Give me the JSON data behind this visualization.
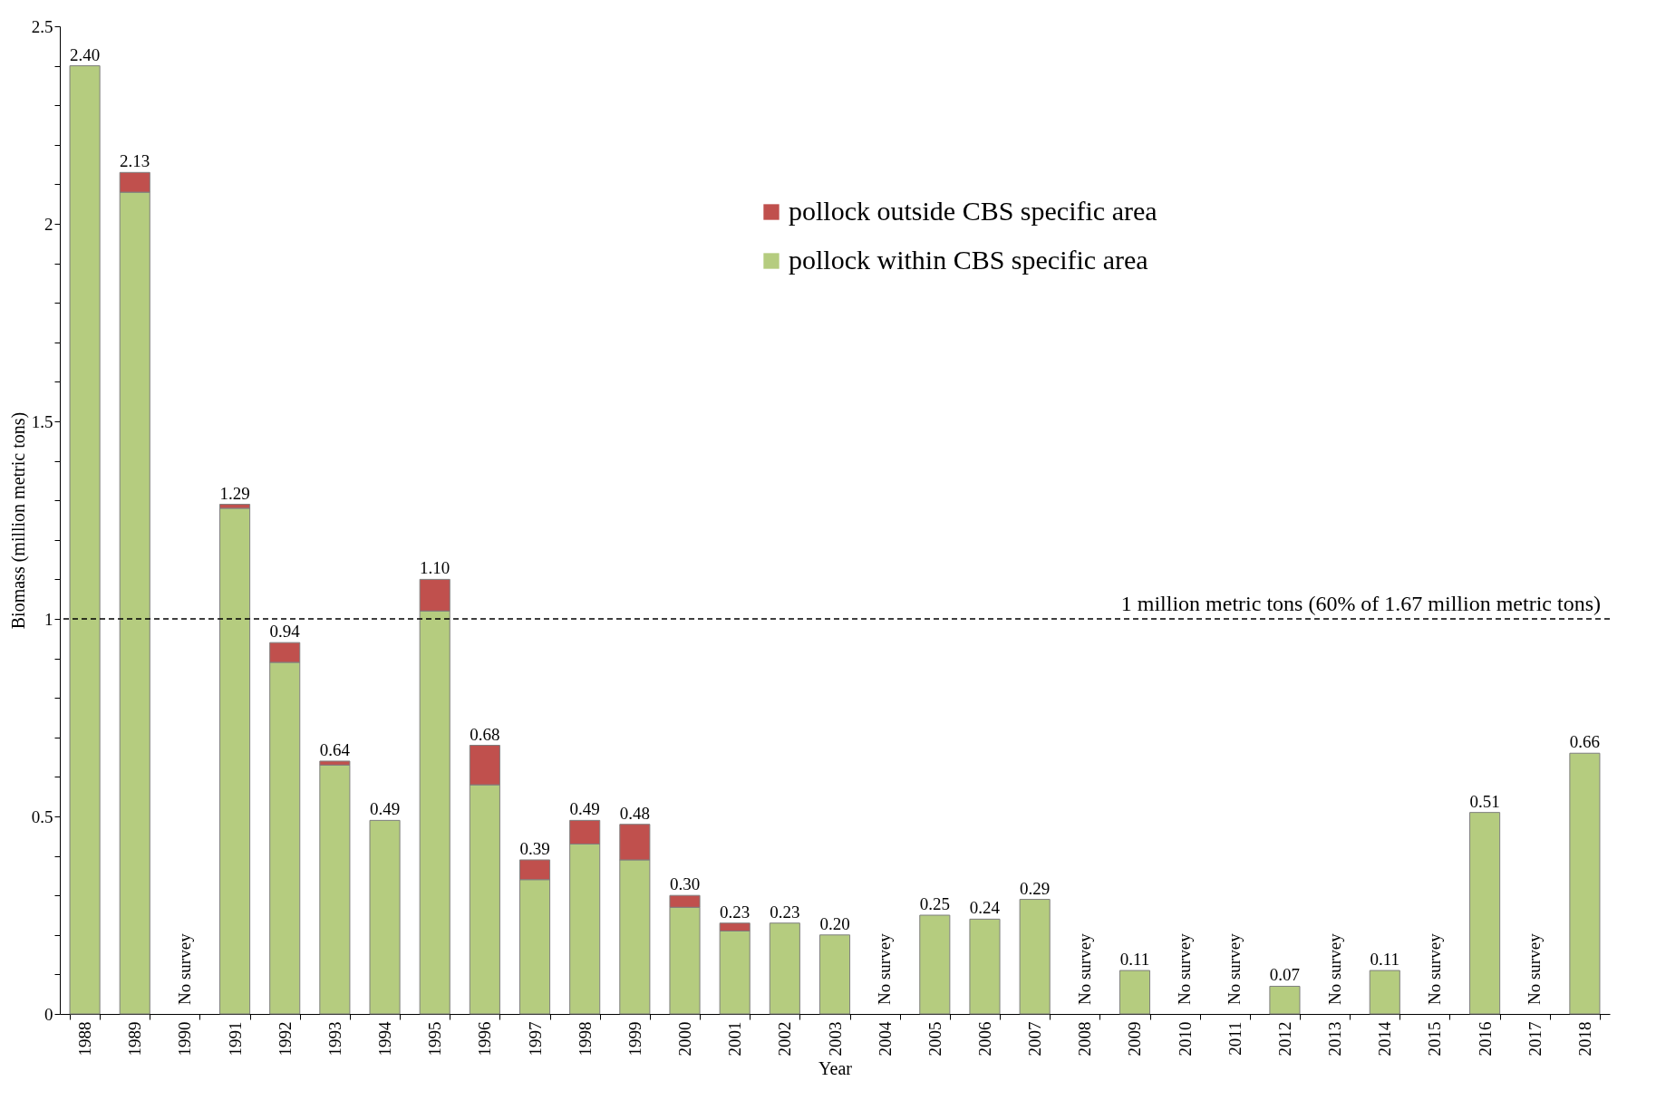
{
  "chart_data": {
    "type": "bar",
    "stacked": true,
    "xlabel": "Year",
    "ylabel": "Biomass (million metric tons)",
    "categories": [
      "1988",
      "1989",
      "1990",
      "1991",
      "1992",
      "1993",
      "1994",
      "1995",
      "1996",
      "1997",
      "1998",
      "1999",
      "2000",
      "2001",
      "2002",
      "2003",
      "2004",
      "2005",
      "2006",
      "2007",
      "2008",
      "2009",
      "2010",
      "2011",
      "2012",
      "2013",
      "2014",
      "2015",
      "2016",
      "2017",
      "2018"
    ],
    "series": [
      {
        "name": "pollock within CBS specific area",
        "color": "#b5cc7f",
        "values": [
          2.4,
          2.08,
          null,
          1.28,
          0.89,
          0.63,
          0.49,
          1.02,
          0.58,
          0.34,
          0.43,
          0.39,
          0.27,
          0.21,
          0.23,
          0.2,
          null,
          0.25,
          0.24,
          0.29,
          null,
          0.11,
          null,
          null,
          0.07,
          null,
          0.11,
          null,
          0.51,
          null,
          0.66
        ]
      },
      {
        "name": "pollock outside CBS specific area",
        "color": "#c0504d",
        "values": [
          null,
          0.05,
          null,
          0.01,
          0.05,
          0.01,
          null,
          0.08,
          0.1,
          0.05,
          0.06,
          0.09,
          0.03,
          0.02,
          null,
          null,
          null,
          null,
          null,
          null,
          null,
          null,
          null,
          null,
          null,
          null,
          null,
          null,
          null,
          null,
          null
        ]
      }
    ],
    "totals": [
      "2.40",
      "2.13",
      null,
      "1.29",
      "0.94",
      "0.64",
      "0.49",
      "1.10",
      "0.68",
      "0.39",
      "0.49",
      "0.48",
      "0.30",
      "0.23",
      "0.23",
      "0.20",
      null,
      "0.25",
      "0.24",
      "0.29",
      null,
      "0.11",
      null,
      null,
      "0.07",
      null,
      "0.11",
      null,
      "0.51",
      null,
      "0.66"
    ],
    "ylim": [
      0,
      2.5
    ],
    "yticks": [
      0,
      {
        "value": 0.1,
        "label": null
      },
      {
        "value": 0.2,
        "label": null
      },
      {
        "value": 0.3,
        "label": null
      },
      {
        "value": 0.4,
        "label": null
      },
      0.5,
      {
        "value": 0.6,
        "label": null
      },
      {
        "value": 0.7,
        "label": null
      },
      {
        "value": 0.8,
        "label": null
      },
      {
        "value": 0.9,
        "label": null
      },
      1,
      {
        "value": 1.1,
        "label": null
      },
      {
        "value": 1.2,
        "label": null
      },
      {
        "value": 1.3,
        "label": null
      },
      {
        "value": 1.4,
        "label": null
      },
      1.5,
      {
        "value": 1.6,
        "label": null
      },
      {
        "value": 1.7,
        "label": null
      },
      {
        "value": 1.8,
        "label": null
      },
      {
        "value": 1.9,
        "label": null
      },
      2,
      {
        "value": 2.1,
        "label": null
      },
      {
        "value": 2.2,
        "label": null
      },
      {
        "value": 2.3,
        "label": null
      },
      {
        "value": 2.4,
        "label": null
      },
      2.5
    ],
    "ref_lines": [
      {
        "axis": "y",
        "value": 1,
        "label": "1 million metric tons (60% of 1.67 million metric tons)",
        "line_style": "dashed",
        "color": "#000000"
      }
    ],
    "annotations": [
      "No survey",
      "No survey",
      "No survey",
      "No survey",
      "No survey",
      "No survey",
      "No survey",
      "No survey"
    ],
    "legend": "top right",
    "grid": false
  }
}
